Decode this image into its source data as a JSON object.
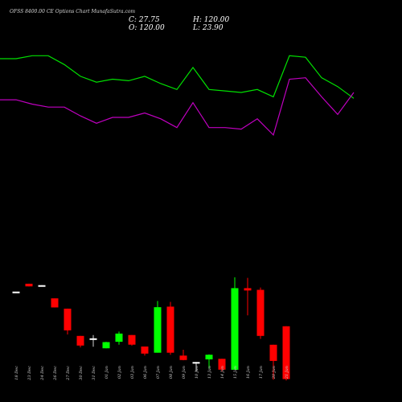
{
  "chart_data": {
    "type": "candlestick",
    "title": "OFSS 8400.00 CE Options Chart MunafaSutra.com",
    "ohlc_readout": {
      "open": "O: 120.00",
      "high": "H: 120.00",
      "close": "C: 27.75",
      "low": "L: 23.90"
    },
    "colors": {
      "background": "#000000",
      "up": "#00ff00",
      "down": "#ff0000",
      "flat": "#ffffff",
      "upper_line": "#00e000",
      "lower_line": "#c000c0"
    },
    "grid": false,
    "price_ylim": [
      0,
      140
    ],
    "upper_line": [
      120,
      120,
      121,
      121,
      118,
      114,
      112,
      113,
      112.5,
      114,
      111.5,
      109.5,
      117,
      109.5,
      109,
      108.5,
      109.5,
      107,
      121,
      120.5,
      113.5,
      110.5,
      106.5
    ],
    "lower_line": [
      106,
      106,
      104.5,
      103.5,
      103.5,
      100.5,
      98,
      100,
      100,
      101.5,
      99.5,
      96.5,
      105,
      96.5,
      96.5,
      96,
      99.5,
      94,
      113,
      113.5,
      107,
      101,
      108.5
    ],
    "candles": [
      {
        "date": "18 Dec",
        "open": 40.6,
        "high": 40.6,
        "low": 40.6,
        "close": 40.6
      },
      {
        "date": "23 Dec",
        "open": 43.3,
        "high": 43.3,
        "low": 42.4,
        "close": 42.4
      },
      {
        "date": "24 Dec",
        "open": 42.8,
        "high": 42.8,
        "low": 42.5,
        "close": 42.8
      },
      {
        "date": "26 Dec",
        "open": 38.3,
        "high": 38.3,
        "low": 35.2,
        "close": 35.2
      },
      {
        "date": "27 Dec",
        "open": 34.8,
        "high": 34.8,
        "low": 26.0,
        "close": 27.4
      },
      {
        "date": "30 Dec",
        "open": 25.5,
        "high": 25.5,
        "low": 21.6,
        "close": 22.2
      },
      {
        "date": "31 Dec",
        "open": 24.5,
        "high": 25.8,
        "low": 21.8,
        "close": 24.7
      },
      {
        "date": "01 Jan",
        "open": 21.3,
        "high": 23.5,
        "low": 21.3,
        "close": 23.4
      },
      {
        "date": "02 Jan",
        "open": 23.5,
        "high": 27.0,
        "low": 22.5,
        "close": 26.3
      },
      {
        "date": "03 Jan",
        "open": 25.8,
        "high": 25.8,
        "low": 22.2,
        "close": 22.5
      },
      {
        "date": "06 Jan",
        "open": 21.9,
        "high": 21.9,
        "low": 18.8,
        "close": 19.5
      },
      {
        "date": "07 Jan",
        "open": 19.8,
        "high": 37.4,
        "low": 19.8,
        "close": 35.3
      },
      {
        "date": "08 Jan",
        "open": 35.5,
        "high": 37.1,
        "low": 19.1,
        "close": 19.8
      },
      {
        "date": "09 Jan",
        "open": 18.8,
        "high": 20.8,
        "low": 17.2,
        "close": 17.3
      },
      {
        "date": "10 Jan",
        "open": 16.3,
        "high": 16.6,
        "low": 13.4,
        "close": 16.6
      },
      {
        "date": "13 Jan",
        "open": 17.5,
        "high": 19.2,
        "low": 14.4,
        "close": 19.1
      },
      {
        "date": "14 Jan",
        "open": 17.7,
        "high": 17.7,
        "low": 13.4,
        "close": 14.0
      },
      {
        "date": "15 Jan",
        "open": 14.0,
        "high": 45.5,
        "low": 14.0,
        "close": 41.8
      },
      {
        "date": "16 Jan",
        "open": 41.8,
        "high": 45.3,
        "low": 32.5,
        "close": 41.0
      },
      {
        "date": "17 Jan",
        "open": 41.2,
        "high": 42.0,
        "low": 24.5,
        "close": 25.5
      },
      {
        "date": "20 Jan",
        "open": 22.5,
        "high": 22.5,
        "low": 10.6,
        "close": 17.0
      },
      {
        "date": "21 Jan",
        "open": 28.8,
        "high": 28.8,
        "low": 10.3,
        "close": 10.8
      }
    ]
  }
}
